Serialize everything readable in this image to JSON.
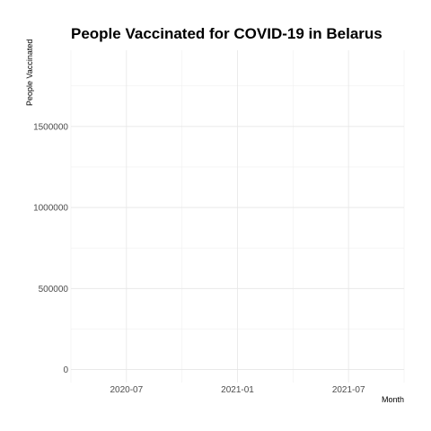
{
  "chart_data": {
    "type": "line",
    "title": "People Vaccinated for COVID-19 in Belarus",
    "xlabel": "Month",
    "ylabel": "People Vaccinated",
    "x_ticks": [
      "2020-07",
      "2021-01",
      "2021-07"
    ],
    "y_ticks": [
      0,
      500000,
      1000000,
      1500000
    ],
    "xlim": [
      "2020-04",
      "2021-10"
    ],
    "ylim": [
      -80000,
      1970000
    ],
    "grid": true,
    "series": []
  }
}
